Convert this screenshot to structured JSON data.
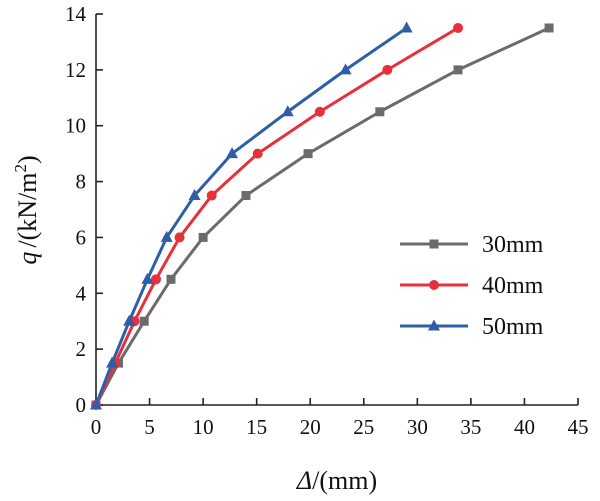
{
  "chart_data": {
    "type": "line",
    "title": "",
    "xlabel": {
      "symbol": "Δ",
      "unit": "/(mm)"
    },
    "ylabel": {
      "symbol": "q",
      "unit": "/(kN/m",
      "sup": "2",
      "close": ")"
    },
    "xlim": [
      0,
      45
    ],
    "ylim": [
      0,
      14
    ],
    "xticks": [
      "0",
      "5",
      "10",
      "15",
      "20",
      "25",
      "30",
      "35",
      "40",
      "45"
    ],
    "yticks": [
      "0",
      "2",
      "4",
      "6",
      "8",
      "10",
      "12",
      "14"
    ],
    "grid": false,
    "legend_position": "right-center",
    "series": [
      {
        "name": "30mm",
        "color": "#6b6b6b",
        "marker": "square",
        "x": [
          0,
          2.1,
          4.5,
          7.0,
          10.0,
          14.0,
          19.8,
          26.5,
          33.8,
          42.3
        ],
        "y": [
          0,
          1.5,
          3.0,
          4.5,
          6.0,
          7.5,
          9.0,
          10.5,
          12.0,
          13.5
        ]
      },
      {
        "name": "40mm",
        "color": "#e8303a",
        "marker": "circle",
        "x": [
          0,
          1.8,
          3.6,
          5.6,
          7.8,
          10.8,
          15.1,
          20.9,
          27.2,
          33.8
        ],
        "y": [
          0,
          1.5,
          3.0,
          4.5,
          6.0,
          7.5,
          9.0,
          10.5,
          12.0,
          13.5
        ]
      },
      {
        "name": "50mm",
        "color": "#2e5ea8",
        "marker": "triangle",
        "x": [
          0,
          1.5,
          3.1,
          4.8,
          6.6,
          9.2,
          12.7,
          17.9,
          23.3,
          29.0
        ],
        "y": [
          0,
          1.5,
          3.0,
          4.5,
          6.0,
          7.5,
          9.0,
          10.5,
          12.0,
          13.5
        ]
      }
    ]
  }
}
